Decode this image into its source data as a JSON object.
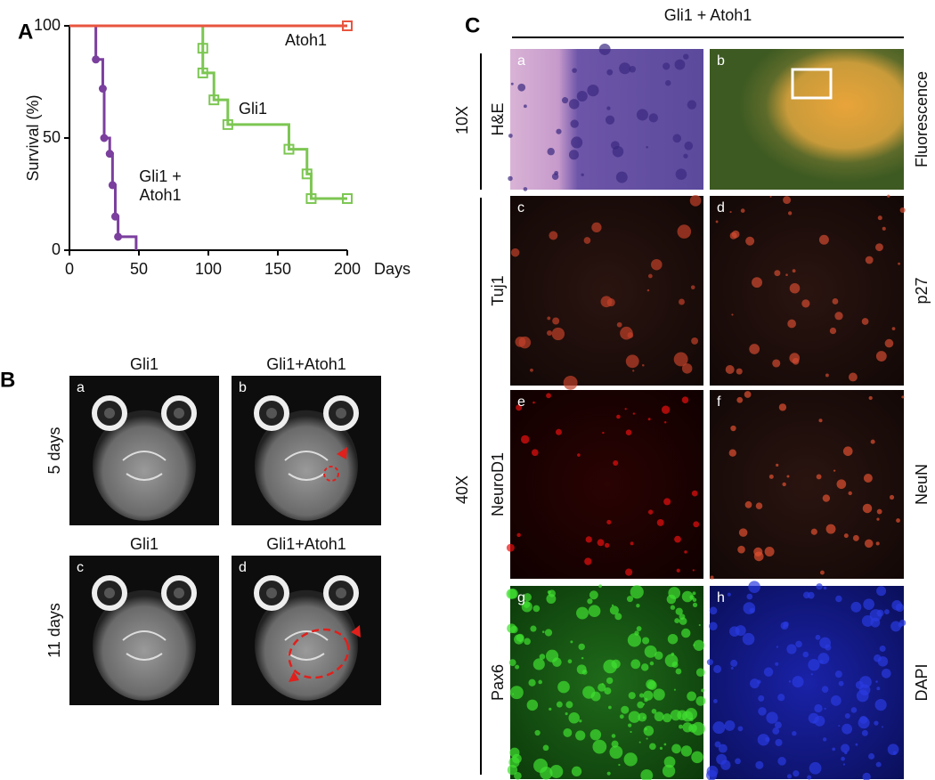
{
  "panel_labels": [
    "A",
    "B",
    "C"
  ],
  "chart_data": {
    "type": "line",
    "step": true,
    "x_label": "Days",
    "y_label": "Survival (%)",
    "xlim": [
      0,
      200
    ],
    "ylim": [
      0,
      100
    ],
    "xticks": [
      0,
      50,
      100,
      150,
      200
    ],
    "yticks": [
      0,
      50,
      100
    ],
    "series": [
      {
        "name": "Gli1 + Atoh1",
        "color": "#7b3f9e",
        "marker": "circle",
        "x": [
          0,
          19,
          24,
          25,
          29,
          31,
          33,
          35,
          48
        ],
        "values": [
          100,
          85,
          72,
          50,
          43,
          29,
          15,
          6,
          0
        ]
      },
      {
        "name": "Gli1",
        "color": "#7cc652",
        "marker": "square",
        "x": [
          0,
          96,
          96,
          104,
          114,
          158,
          171,
          174,
          200
        ],
        "values": [
          100,
          90,
          79,
          67,
          56,
          45,
          34,
          23,
          23
        ]
      },
      {
        "name": "Atoh1",
        "color": "#e8553f",
        "marker": "square",
        "x": [
          0,
          200
        ],
        "values": [
          100,
          100
        ]
      }
    ]
  },
  "panel_b": {
    "rows": [
      "5 days",
      "11 days"
    ],
    "images": [
      {
        "letter": "a",
        "title": "Gli1"
      },
      {
        "letter": "b",
        "title": "Gli1+Atoh1"
      },
      {
        "letter": "c",
        "title": "Gli1"
      },
      {
        "letter": "d",
        "title": "Gli1+Atoh1"
      }
    ]
  },
  "panel_c": {
    "title": "Gli1 + Atoh1",
    "magnifications": [
      "10X",
      "40X"
    ],
    "images": [
      {
        "letter": "a",
        "label": "H&E"
      },
      {
        "letter": "b",
        "label": "Fluorescence"
      },
      {
        "letter": "c",
        "label": "Tuj1"
      },
      {
        "letter": "d",
        "label": "p27"
      },
      {
        "letter": "e",
        "label": "NeuroD1"
      },
      {
        "letter": "f",
        "label": "NeuN"
      },
      {
        "letter": "g",
        "label": "Pax6"
      },
      {
        "letter": "h",
        "label": "DAPI"
      }
    ]
  }
}
